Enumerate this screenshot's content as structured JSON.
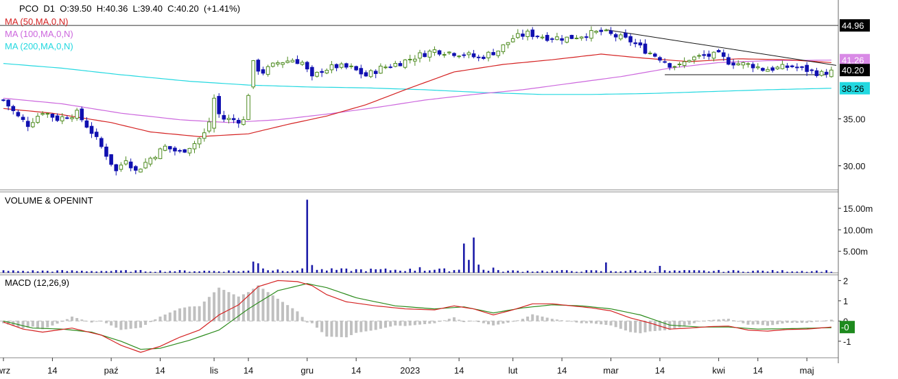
{
  "header": {
    "symbol": "PCO",
    "interval": "D1",
    "open_label": "O:39.50",
    "high_label": "H:40.36",
    "low_label": "L:39.40",
    "close_label": "C:40.20",
    "change_label": "(+1.41%)"
  },
  "ma_legend": [
    {
      "label": "MA (50,MA,0,N)",
      "color": "#d42020"
    },
    {
      "label": "MA (100,MA,0,N)",
      "color": "#cc66dd"
    },
    {
      "label": "MA (200,MA,0,N)",
      "color": "#22d8e0"
    }
  ],
  "panels": {
    "volume_title": "VOLUME & OPENINT",
    "macd_title": "MACD (12,26,9)"
  },
  "colors": {
    "up_candle": "#4c8a1e",
    "down_candle": "#1010b0",
    "volume_bar": "#1a1aa8",
    "macd_line": "#d42020",
    "signal_line": "#2a8a1a",
    "histogram": "#c0c0c0",
    "last_price_badge": "#000000",
    "macd_badge": "#1e8a1e"
  },
  "chart_data": [
    {
      "type": "candlestick",
      "title": "PCO D1",
      "y_ticks": [
        "30.00",
        "35.00"
      ],
      "price_badges": [
        {
          "value": "44.96",
          "bg": "#000000",
          "fg": "#ffffff"
        },
        {
          "value": "41.26",
          "bg": "#d98ae6",
          "fg": "#ffffff"
        },
        {
          "value": "40.20",
          "bg": "#000000",
          "fg": "#ffffff"
        },
        {
          "value": "38.26",
          "bg": "#22d8e0",
          "fg": "#000000"
        }
      ],
      "ylim": [
        27.5,
        46.5
      ],
      "x_ticks": [
        "wrz",
        "14",
        "paź",
        "14",
        "lis",
        "14",
        "gru",
        "14",
        "2023",
        "14",
        "lut",
        "14",
        "mar",
        "14",
        "kwi",
        "14",
        "maj"
      ],
      "x_tick_index": [
        0,
        10,
        22,
        32,
        43,
        50,
        62,
        72,
        83,
        93,
        104,
        114,
        124,
        134,
        146,
        154,
        164
      ],
      "anchors": [
        [
          0,
          37.0
        ],
        [
          3,
          35.2
        ],
        [
          5,
          34.4
        ],
        [
          8,
          35.8
        ],
        [
          11,
          35.0
        ],
        [
          15,
          35.6
        ],
        [
          18,
          33.6
        ],
        [
          21,
          31.2
        ],
        [
          23,
          29.4
        ],
        [
          25,
          30.8
        ],
        [
          27,
          29.4
        ],
        [
          30,
          30.8
        ],
        [
          33,
          32.0
        ],
        [
          36,
          31.4
        ],
        [
          39,
          32.4
        ],
        [
          41,
          33.4
        ],
        [
          43,
          36.0
        ],
        [
          45,
          35.0
        ],
        [
          49,
          34.8
        ],
        [
          51,
          40.6
        ],
        [
          53,
          40.0
        ],
        [
          56,
          41.0
        ],
        [
          59,
          41.3
        ],
        [
          61,
          41.0
        ],
        [
          63,
          39.3
        ],
        [
          65,
          40.2
        ],
        [
          68,
          40.6
        ],
        [
          71,
          40.4
        ],
        [
          74,
          39.6
        ],
        [
          77,
          40.4
        ],
        [
          81,
          41.0
        ],
        [
          85,
          41.8
        ],
        [
          88,
          42.3
        ],
        [
          91,
          42.1
        ],
        [
          94,
          41.9
        ],
        [
          97,
          41.5
        ],
        [
          101,
          42.3
        ],
        [
          104,
          43.6
        ],
        [
          107,
          44.1
        ],
        [
          111,
          43.7
        ],
        [
          115,
          43.6
        ],
        [
          118,
          43.9
        ],
        [
          122,
          44.3
        ],
        [
          125,
          43.8
        ],
        [
          128,
          43.3
        ],
        [
          131,
          42.3
        ],
        [
          134,
          41.5
        ],
        [
          136,
          40.8
        ],
        [
          138,
          40.6
        ],
        [
          140,
          41.4
        ],
        [
          143,
          41.7
        ],
        [
          146,
          41.8
        ],
        [
          148,
          41.1
        ],
        [
          150,
          40.9
        ],
        [
          153,
          40.7
        ],
        [
          155,
          40.3
        ],
        [
          158,
          40.4
        ],
        [
          161,
          40.6
        ],
        [
          164,
          40.2
        ],
        [
          167,
          39.8
        ],
        [
          169,
          40.2
        ]
      ],
      "big_moves": [
        {
          "index": 43,
          "open": 34.0,
          "close": 37.2
        },
        {
          "index": 51,
          "open": 38.4,
          "close": 41.2
        }
      ],
      "ma50": [
        [
          0,
          36.1
        ],
        [
          10,
          35.6
        ],
        [
          22,
          34.6
        ],
        [
          30,
          33.6
        ],
        [
          40,
          33.1
        ],
        [
          50,
          33.4
        ],
        [
          58,
          34.4
        ],
        [
          66,
          35.3
        ],
        [
          74,
          36.5
        ],
        [
          82,
          38.1
        ],
        [
          92,
          40.0
        ],
        [
          102,
          40.8
        ],
        [
          112,
          41.3
        ],
        [
          122,
          41.9
        ],
        [
          130,
          41.5
        ],
        [
          140,
          41.1
        ],
        [
          150,
          41.4
        ],
        [
          160,
          41.3
        ],
        [
          169,
          41.0
        ]
      ],
      "ma100": [
        [
          0,
          37.2
        ],
        [
          12,
          36.6
        ],
        [
          24,
          35.6
        ],
        [
          36,
          34.9
        ],
        [
          46,
          34.6
        ],
        [
          56,
          34.9
        ],
        [
          66,
          35.5
        ],
        [
          76,
          36.2
        ],
        [
          86,
          37.0
        ],
        [
          96,
          37.6
        ],
        [
          106,
          38.1
        ],
        [
          116,
          38.8
        ],
        [
          126,
          39.5
        ],
        [
          136,
          40.4
        ],
        [
          146,
          41.0
        ],
        [
          156,
          41.2
        ],
        [
          169,
          41.26
        ]
      ],
      "ma200": [
        [
          0,
          40.9
        ],
        [
          12,
          40.4
        ],
        [
          24,
          39.7
        ],
        [
          38,
          39.0
        ],
        [
          50,
          38.6
        ],
        [
          62,
          38.4
        ],
        [
          74,
          38.3
        ],
        [
          86,
          38.1
        ],
        [
          98,
          37.8
        ],
        [
          110,
          37.6
        ],
        [
          120,
          37.6
        ],
        [
          132,
          37.7
        ],
        [
          144,
          37.9
        ],
        [
          156,
          38.1
        ],
        [
          169,
          38.26
        ]
      ],
      "reference_line": 44.96,
      "trend_lines": [
        {
          "from": [
            123,
            44.5
          ],
          "to": [
            170,
            40.7
          ]
        },
        {
          "from": [
            135,
            39.7
          ],
          "to": [
            168,
            39.7
          ]
        }
      ]
    },
    {
      "type": "bar",
      "title": "VOLUME & OPENINT",
      "y_ticks": [
        "5.00m",
        "10.00m",
        "15.00m"
      ],
      "unit": "millions",
      "ylim": [
        0,
        18.5
      ],
      "base_volume_m": 0.5,
      "spikes": [
        [
          51,
          2.6
        ],
        [
          52,
          2.2
        ],
        [
          53,
          1.0
        ],
        [
          62,
          17.0
        ],
        [
          63,
          1.8
        ],
        [
          94,
          6.8
        ],
        [
          95,
          3.0
        ],
        [
          96,
          8.2
        ],
        [
          97,
          1.9
        ],
        [
          123,
          2.4
        ],
        [
          134,
          1.6
        ],
        [
          85,
          1.3
        ],
        [
          100,
          1.2
        ]
      ]
    },
    {
      "type": "line",
      "title": "MACD (12,26,9)",
      "y_ticks": [
        "-1",
        "0",
        "1",
        "2"
      ],
      "current_value": "-0",
      "ylim": [
        -1.75,
        2.25
      ],
      "macd": [
        [
          0,
          -0.05
        ],
        [
          4,
          -0.4
        ],
        [
          8,
          -0.55
        ],
        [
          14,
          -0.35
        ],
        [
          20,
          -0.7
        ],
        [
          24,
          -1.2
        ],
        [
          28,
          -1.55
        ],
        [
          32,
          -1.25
        ],
        [
          36,
          -0.8
        ],
        [
          40,
          -0.45
        ],
        [
          44,
          0.3
        ],
        [
          48,
          0.8
        ],
        [
          52,
          1.7
        ],
        [
          56,
          2.0
        ],
        [
          60,
          1.95
        ],
        [
          63,
          1.75
        ],
        [
          66,
          1.3
        ],
        [
          70,
          0.95
        ],
        [
          76,
          0.75
        ],
        [
          82,
          0.6
        ],
        [
          88,
          0.55
        ],
        [
          92,
          0.75
        ],
        [
          96,
          0.6
        ],
        [
          100,
          0.3
        ],
        [
          104,
          0.55
        ],
        [
          108,
          0.85
        ],
        [
          112,
          0.85
        ],
        [
          116,
          0.75
        ],
        [
          120,
          0.65
        ],
        [
          124,
          0.5
        ],
        [
          128,
          0.15
        ],
        [
          132,
          -0.1
        ],
        [
          136,
          -0.4
        ],
        [
          140,
          -0.35
        ],
        [
          144,
          -0.28
        ],
        [
          148,
          -0.25
        ],
        [
          152,
          -0.45
        ],
        [
          156,
          -0.5
        ],
        [
          160,
          -0.42
        ],
        [
          164,
          -0.4
        ],
        [
          169,
          -0.3
        ]
      ],
      "signal": [
        [
          0,
          0.0
        ],
        [
          6,
          -0.35
        ],
        [
          12,
          -0.4
        ],
        [
          18,
          -0.55
        ],
        [
          24,
          -1.0
        ],
        [
          28,
          -1.4
        ],
        [
          32,
          -1.35
        ],
        [
          38,
          -0.95
        ],
        [
          44,
          -0.45
        ],
        [
          50,
          0.6
        ],
        [
          56,
          1.5
        ],
        [
          62,
          1.85
        ],
        [
          66,
          1.65
        ],
        [
          72,
          1.15
        ],
        [
          80,
          0.75
        ],
        [
          88,
          0.6
        ],
        [
          94,
          0.7
        ],
        [
          100,
          0.4
        ],
        [
          106,
          0.65
        ],
        [
          112,
          0.8
        ],
        [
          118,
          0.75
        ],
        [
          124,
          0.6
        ],
        [
          130,
          0.3
        ],
        [
          136,
          -0.2
        ],
        [
          142,
          -0.3
        ],
        [
          148,
          -0.3
        ],
        [
          154,
          -0.4
        ],
        [
          160,
          -0.38
        ],
        [
          169,
          -0.33
        ]
      ],
      "histogram_scale": 1.0
    }
  ]
}
